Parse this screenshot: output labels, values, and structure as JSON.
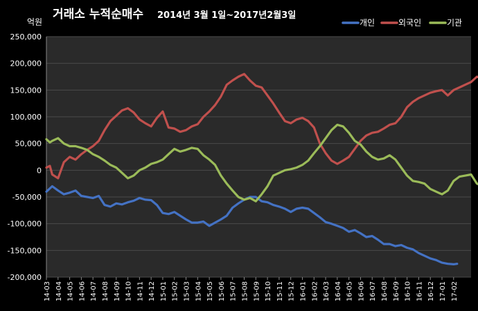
{
  "chart_data": {
    "type": "line",
    "title": "거래소 누적순매수",
    "subtitle": "2014년 3월 1일~2017년2월3일",
    "unit_label": "억원",
    "ylim": [
      -200000,
      250000
    ],
    "y_ticks": [
      250000,
      200000,
      150000,
      100000,
      50000,
      0,
      -50000,
      -100000,
      -150000,
      -200000
    ],
    "y_tick_labels": [
      "250,000",
      "200,000",
      "150,000",
      "100,000",
      "50,000",
      "0",
      "-50,000",
      "-100,000",
      "-150,000",
      "-200,000"
    ],
    "x_tick_labels": [
      "14-03",
      "14-04",
      "14-05",
      "14-06",
      "14-07",
      "14-08",
      "14-09",
      "14-10",
      "14-11",
      "14-12",
      "15-01",
      "15-02",
      "15-03",
      "15-04",
      "15-05",
      "15-06",
      "15-07",
      "15-08",
      "15-09",
      "15-10",
      "15-11",
      "15-12",
      "16-01",
      "16-02",
      "16-03",
      "16-04",
      "16-05",
      "16-06",
      "16-07",
      "16-08",
      "16-09",
      "16-10",
      "16-11",
      "16-12",
      "17-01",
      "17-02"
    ],
    "grid": true,
    "legend_position": "top-right",
    "series": [
      {
        "name": "개인",
        "color": "#4472C4",
        "points": [
          [
            0,
            -40000
          ],
          [
            0.5,
            -30000
          ],
          [
            1,
            -38000
          ],
          [
            1.5,
            -45000
          ],
          [
            2,
            -42000
          ],
          [
            2.5,
            -38000
          ],
          [
            3,
            -48000
          ],
          [
            3.5,
            -50000
          ],
          [
            4,
            -52000
          ],
          [
            4.5,
            -48000
          ],
          [
            5,
            -65000
          ],
          [
            5.5,
            -68000
          ],
          [
            6,
            -62000
          ],
          [
            6.5,
            -64000
          ],
          [
            7,
            -60000
          ],
          [
            7.5,
            -57000
          ],
          [
            8,
            -52000
          ],
          [
            8.5,
            -55000
          ],
          [
            9,
            -56000
          ],
          [
            9.5,
            -65000
          ],
          [
            10,
            -80000
          ],
          [
            10.5,
            -82000
          ],
          [
            11,
            -78000
          ],
          [
            11.5,
            -85000
          ],
          [
            12,
            -92000
          ],
          [
            12.5,
            -98000
          ],
          [
            13,
            -98000
          ],
          [
            13.5,
            -96000
          ],
          [
            14,
            -104000
          ],
          [
            14.5,
            -98000
          ],
          [
            15,
            -92000
          ],
          [
            15.5,
            -85000
          ],
          [
            16,
            -70000
          ],
          [
            16.5,
            -62000
          ],
          [
            17,
            -55000
          ],
          [
            17.5,
            -50000
          ],
          [
            18,
            -50000
          ],
          [
            18.5,
            -58000
          ],
          [
            19,
            -60000
          ],
          [
            19.5,
            -65000
          ],
          [
            20,
            -68000
          ],
          [
            20.5,
            -72000
          ],
          [
            21,
            -78000
          ],
          [
            21.5,
            -72000
          ],
          [
            22,
            -70000
          ],
          [
            22.5,
            -72000
          ],
          [
            23,
            -80000
          ],
          [
            23.5,
            -88000
          ],
          [
            24,
            -97000
          ],
          [
            24.5,
            -100000
          ],
          [
            25,
            -104000
          ],
          [
            25.5,
            -108000
          ],
          [
            26,
            -115000
          ],
          [
            26.5,
            -112000
          ],
          [
            27,
            -118000
          ],
          [
            27.5,
            -125000
          ],
          [
            28,
            -123000
          ],
          [
            28.5,
            -130000
          ],
          [
            29,
            -138000
          ],
          [
            29.5,
            -138000
          ],
          [
            30,
            -142000
          ],
          [
            30.5,
            -140000
          ],
          [
            31,
            -145000
          ],
          [
            31.5,
            -148000
          ],
          [
            32,
            -155000
          ],
          [
            32.5,
            -160000
          ],
          [
            33,
            -165000
          ],
          [
            33.5,
            -168000
          ],
          [
            34,
            -173000
          ],
          [
            34.5,
            -175000
          ],
          [
            35,
            -176000
          ],
          [
            35.3,
            -175000
          ]
        ]
      },
      {
        "name": "외국인",
        "color": "#C0504D",
        "points": [
          [
            0,
            5000
          ],
          [
            0.3,
            8000
          ],
          [
            0.5,
            -8000
          ],
          [
            1,
            -15000
          ],
          [
            1.5,
            15000
          ],
          [
            2,
            25000
          ],
          [
            2.5,
            20000
          ],
          [
            3,
            30000
          ],
          [
            3.5,
            38000
          ],
          [
            4,
            45000
          ],
          [
            4.5,
            55000
          ],
          [
            5,
            75000
          ],
          [
            5.5,
            92000
          ],
          [
            6,
            102000
          ],
          [
            6.5,
            112000
          ],
          [
            7,
            116000
          ],
          [
            7.5,
            108000
          ],
          [
            8,
            95000
          ],
          [
            8.5,
            88000
          ],
          [
            9,
            82000
          ],
          [
            9.5,
            98000
          ],
          [
            10,
            110000
          ],
          [
            10.5,
            80000
          ],
          [
            11,
            78000
          ],
          [
            11.5,
            72000
          ],
          [
            12,
            75000
          ],
          [
            12.5,
            82000
          ],
          [
            13,
            86000
          ],
          [
            13.5,
            100000
          ],
          [
            14,
            110000
          ],
          [
            14.5,
            122000
          ],
          [
            15,
            138000
          ],
          [
            15.5,
            160000
          ],
          [
            16,
            168000
          ],
          [
            16.5,
            175000
          ],
          [
            17,
            180000
          ],
          [
            17.5,
            168000
          ],
          [
            18,
            158000
          ],
          [
            18.5,
            155000
          ],
          [
            19,
            140000
          ],
          [
            19.5,
            125000
          ],
          [
            20,
            108000
          ],
          [
            20.5,
            92000
          ],
          [
            21,
            88000
          ],
          [
            21.5,
            95000
          ],
          [
            22,
            98000
          ],
          [
            22.5,
            92000
          ],
          [
            23,
            80000
          ],
          [
            23.5,
            50000
          ],
          [
            24,
            32000
          ],
          [
            24.5,
            18000
          ],
          [
            25,
            12000
          ],
          [
            25.5,
            18000
          ],
          [
            26,
            25000
          ],
          [
            26.5,
            40000
          ],
          [
            27,
            55000
          ],
          [
            27.5,
            65000
          ],
          [
            28,
            70000
          ],
          [
            28.5,
            72000
          ],
          [
            29,
            78000
          ],
          [
            29.5,
            85000
          ],
          [
            30,
            88000
          ],
          [
            30.5,
            100000
          ],
          [
            31,
            118000
          ],
          [
            31.5,
            128000
          ],
          [
            32,
            135000
          ],
          [
            32.5,
            140000
          ],
          [
            33,
            145000
          ],
          [
            33.5,
            148000
          ],
          [
            34,
            150000
          ],
          [
            34.5,
            140000
          ],
          [
            35,
            150000
          ],
          [
            35.5,
            155000
          ],
          [
            36,
            160000
          ],
          [
            36.5,
            165000
          ],
          [
            37,
            175000
          ],
          [
            37.5,
            172000
          ]
        ]
      },
      {
        "name": "기관",
        "color": "#9BBB59",
        "points": [
          [
            0,
            58000
          ],
          [
            0.3,
            52000
          ],
          [
            0.5,
            55000
          ],
          [
            1,
            60000
          ],
          [
            1.5,
            50000
          ],
          [
            2,
            45000
          ],
          [
            2.5,
            45000
          ],
          [
            3,
            42000
          ],
          [
            3.5,
            38000
          ],
          [
            4,
            30000
          ],
          [
            4.5,
            25000
          ],
          [
            5,
            18000
          ],
          [
            5.5,
            10000
          ],
          [
            6,
            5000
          ],
          [
            6.5,
            -5000
          ],
          [
            7,
            -15000
          ],
          [
            7.5,
            -10000
          ],
          [
            8,
            0
          ],
          [
            8.5,
            5000
          ],
          [
            9,
            12000
          ],
          [
            9.5,
            15000
          ],
          [
            10,
            20000
          ],
          [
            10.5,
            30000
          ],
          [
            11,
            40000
          ],
          [
            11.5,
            35000
          ],
          [
            12,
            38000
          ],
          [
            12.5,
            42000
          ],
          [
            13,
            40000
          ],
          [
            13.5,
            28000
          ],
          [
            14,
            20000
          ],
          [
            14.5,
            10000
          ],
          [
            15,
            -10000
          ],
          [
            15.5,
            -25000
          ],
          [
            16,
            -38000
          ],
          [
            16.5,
            -50000
          ],
          [
            17,
            -55000
          ],
          [
            17.5,
            -52000
          ],
          [
            18,
            -58000
          ],
          [
            18.5,
            -45000
          ],
          [
            19,
            -30000
          ],
          [
            19.5,
            -10000
          ],
          [
            20,
            -5000
          ],
          [
            20.5,
            0
          ],
          [
            21,
            2000
          ],
          [
            21.5,
            5000
          ],
          [
            22,
            10000
          ],
          [
            22.5,
            18000
          ],
          [
            23,
            32000
          ],
          [
            23.5,
            45000
          ],
          [
            24,
            60000
          ],
          [
            24.5,
            75000
          ],
          [
            25,
            85000
          ],
          [
            25.5,
            82000
          ],
          [
            26,
            70000
          ],
          [
            26.5,
            55000
          ],
          [
            27,
            48000
          ],
          [
            27.5,
            35000
          ],
          [
            28,
            25000
          ],
          [
            28.5,
            20000
          ],
          [
            29,
            22000
          ],
          [
            29.5,
            28000
          ],
          [
            30,
            20000
          ],
          [
            30.5,
            5000
          ],
          [
            31,
            -10000
          ],
          [
            31.5,
            -20000
          ],
          [
            32,
            -22000
          ],
          [
            32.5,
            -25000
          ],
          [
            33,
            -35000
          ],
          [
            33.5,
            -40000
          ],
          [
            34,
            -45000
          ],
          [
            34.5,
            -38000
          ],
          [
            35,
            -20000
          ],
          [
            35.5,
            -12000
          ],
          [
            36,
            -10000
          ],
          [
            36.5,
            -8000
          ],
          [
            37,
            -25000
          ],
          [
            37.5,
            -30000
          ]
        ]
      }
    ]
  }
}
